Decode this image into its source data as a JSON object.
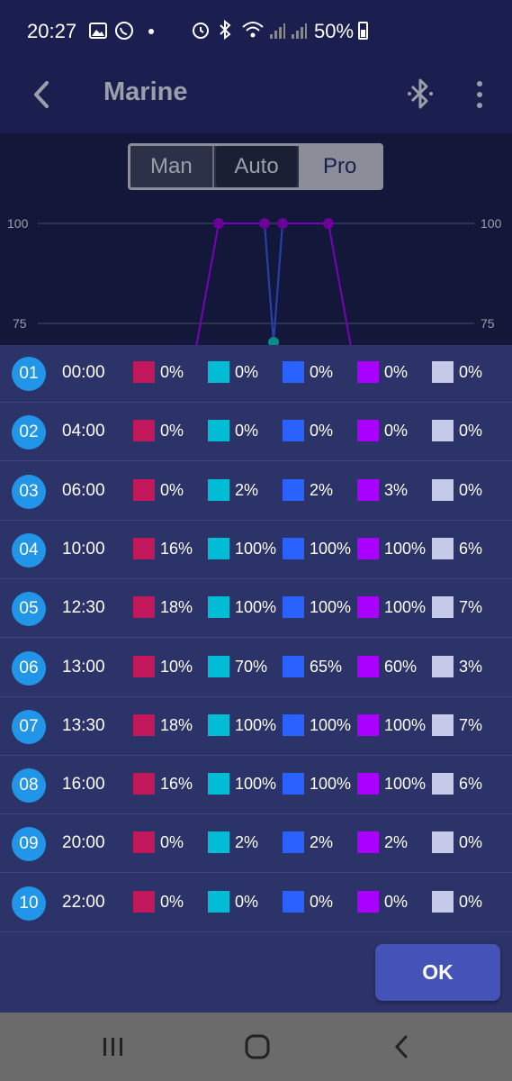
{
  "status_bar": {
    "time": "20:27",
    "battery": "50%"
  },
  "app_bar": {
    "title": "Marine"
  },
  "mode_selector": {
    "options": [
      "Man",
      "Auto",
      "Pro"
    ],
    "selected": "Pro"
  },
  "chart_data": {
    "type": "line",
    "y_tick_labels_left": [
      "100",
      "75"
    ],
    "y_tick_labels_right": [
      "100",
      "75"
    ],
    "grid": true,
    "note_visible_range": "only top portion of chart visible (75 to 100)"
  },
  "channel_colors": [
    "#c2185b",
    "#00bcd4",
    "#2962ff",
    "#aa00ff",
    "#c5cae9"
  ],
  "schedule": [
    {
      "index": "01",
      "time": "00:00",
      "values": [
        "0%",
        "0%",
        "0%",
        "0%",
        "0%"
      ]
    },
    {
      "index": "02",
      "time": "04:00",
      "values": [
        "0%",
        "0%",
        "0%",
        "0%",
        "0%"
      ]
    },
    {
      "index": "03",
      "time": "06:00",
      "values": [
        "0%",
        "2%",
        "2%",
        "3%",
        "0%"
      ]
    },
    {
      "index": "04",
      "time": "10:00",
      "values": [
        "16%",
        "100%",
        "100%",
        "100%",
        "6%"
      ]
    },
    {
      "index": "05",
      "time": "12:30",
      "values": [
        "18%",
        "100%",
        "100%",
        "100%",
        "7%"
      ]
    },
    {
      "index": "06",
      "time": "13:00",
      "values": [
        "10%",
        "70%",
        "65%",
        "60%",
        "3%"
      ]
    },
    {
      "index": "07",
      "time": "13:30",
      "values": [
        "18%",
        "100%",
        "100%",
        "100%",
        "7%"
      ]
    },
    {
      "index": "08",
      "time": "16:00",
      "values": [
        "16%",
        "100%",
        "100%",
        "100%",
        "6%"
      ]
    },
    {
      "index": "09",
      "time": "20:00",
      "values": [
        "0%",
        "2%",
        "2%",
        "2%",
        "0%"
      ]
    },
    {
      "index": "10",
      "time": "22:00",
      "values": [
        "0%",
        "0%",
        "0%",
        "0%",
        "0%"
      ]
    }
  ],
  "ok_button": {
    "label": "OK"
  }
}
